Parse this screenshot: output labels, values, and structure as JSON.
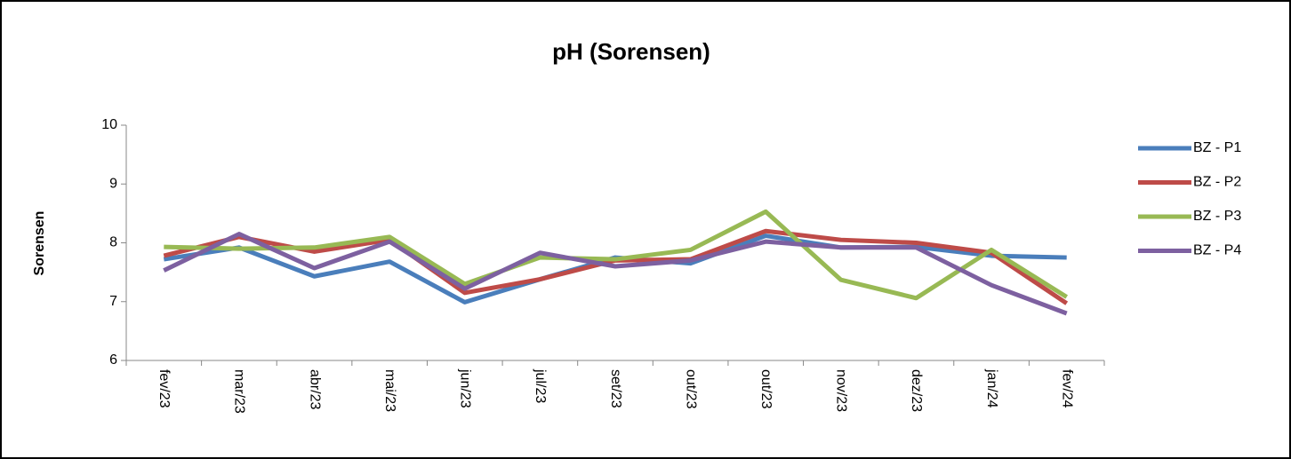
{
  "chart_data": {
    "type": "line",
    "title": "pH (Sorensen)",
    "y_label": "Sorensen",
    "categories": [
      "fev/23",
      "mar/23",
      "abr/23",
      "mai/23",
      "jun/23",
      "jul/23",
      "set/23",
      "out/23",
      "out/23",
      "nov/23",
      "dez/23",
      "jan/24",
      "fev/24"
    ],
    "series": [
      {
        "name": "BZ - P1",
        "color": "#4a7ebb",
        "values": [
          7.72,
          7.92,
          7.43,
          7.68,
          6.99,
          7.38,
          7.75,
          7.65,
          8.12,
          7.92,
          7.93,
          7.78,
          7.75
        ]
      },
      {
        "name": "BZ - P2",
        "color": "#be4b48",
        "values": [
          7.78,
          8.1,
          7.85,
          8.05,
          7.15,
          7.38,
          7.7,
          7.72,
          8.2,
          8.05,
          8.0,
          7.83,
          6.97
        ]
      },
      {
        "name": "BZ - P3",
        "color": "#98b954",
        "values": [
          7.93,
          7.9,
          7.92,
          8.1,
          7.3,
          7.75,
          7.72,
          7.88,
          8.53,
          7.37,
          7.06,
          7.88,
          7.08
        ]
      },
      {
        "name": "BZ - P4",
        "color": "#7d60a0",
        "values": [
          7.53,
          8.15,
          7.57,
          8.02,
          7.22,
          7.83,
          7.6,
          7.7,
          8.02,
          7.92,
          7.92,
          7.28,
          6.8
        ]
      }
    ],
    "ylim": [
      6,
      10
    ],
    "yticks": [
      6,
      7,
      8,
      9,
      10
    ],
    "legend": "right"
  }
}
